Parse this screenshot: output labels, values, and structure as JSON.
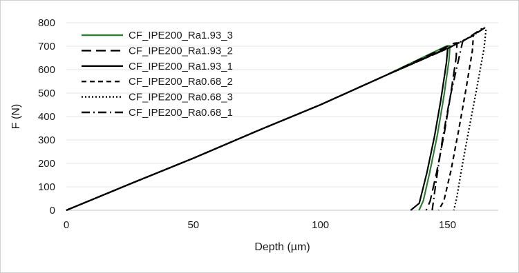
{
  "chart_data": {
    "type": "line",
    "xlabel": "Depth (µm)",
    "ylabel": "F (N)",
    "xlim": [
      0,
      170
    ],
    "ylim": [
      0,
      800
    ],
    "xticks": [
      0,
      50,
      100,
      150
    ],
    "yticks": [
      0,
      100,
      200,
      300,
      400,
      500,
      600,
      700,
      800
    ],
    "grid": "horizontal",
    "legend_position": "top-left",
    "series": [
      {
        "name": "CF_IPE200_Ra1.93_3",
        "color": "#2e7d32",
        "dash": "solid",
        "x": [
          0,
          25,
          50,
          75,
          100,
          125,
          149.5,
          151.0,
          150.6,
          148.5,
          146.0,
          143.0,
          140.5,
          138.8
        ],
        "y": [
          0,
          112,
          222,
          338,
          450,
          572,
          700,
          702,
          640,
          480,
          320,
          160,
          40,
          0
        ]
      },
      {
        "name": "CF_IPE200_Ra1.93_2",
        "color": "#000000",
        "dash": "long-dash",
        "x": [
          0,
          25,
          50,
          75,
          100,
          125,
          152.5,
          153.8,
          153.4,
          151.2,
          148.7,
          145.7,
          143.2,
          141.6
        ],
        "y": [
          0,
          112,
          222,
          338,
          450,
          572,
          712,
          714,
          650,
          490,
          325,
          160,
          40,
          0
        ]
      },
      {
        "name": "CF_IPE200_Ra1.93_1",
        "color": "#000000",
        "dash": "solid",
        "x": [
          0,
          25,
          50,
          75,
          100,
          125,
          149.5,
          150.1,
          149.6,
          147.4,
          144.9,
          141.9,
          138.9,
          135.5
        ],
        "y": [
          0,
          112,
          222,
          338,
          450,
          572,
          690,
          690,
          630,
          470,
          315,
          160,
          30,
          0
        ]
      },
      {
        "name": "CF_IPE200_Ra0.68_2",
        "color": "#000000",
        "dash": "short-dash",
        "x": [
          0,
          25,
          50,
          75,
          100,
          125,
          150,
          160.2,
          159.8,
          157.2,
          154.4,
          151.4,
          148.6,
          146.5
        ],
        "y": [
          0,
          112,
          222,
          338,
          450,
          572,
          690,
          745,
          680,
          510,
          340,
          170,
          40,
          0
        ]
      },
      {
        "name": "CF_IPE200_Ra0.68_3",
        "color": "#000000",
        "dash": "dotted",
        "x": [
          0,
          25,
          50,
          75,
          100,
          125,
          150,
          160,
          164.6,
          165.2,
          164.4,
          161.2,
          158.0,
          155.3,
          153.6,
          152.5
        ],
        "y": [
          0,
          112,
          222,
          338,
          450,
          572,
          690,
          745,
          778,
          775,
          690,
          500,
          320,
          160,
          50,
          0
        ]
      },
      {
        "name": "CF_IPE200_Ra0.68_1",
        "color": "#000000",
        "dash": "dash-dot",
        "x": [
          0,
          25,
          50,
          75,
          100,
          125,
          150,
          160,
          164.6,
          164.0,
          156.0,
          151.0,
          148.0,
          145.5,
          144.0
        ],
        "y": [
          0,
          112,
          222,
          338,
          450,
          572,
          690,
          745,
          778,
          778,
          720,
          480,
          300,
          120,
          0
        ]
      }
    ]
  }
}
